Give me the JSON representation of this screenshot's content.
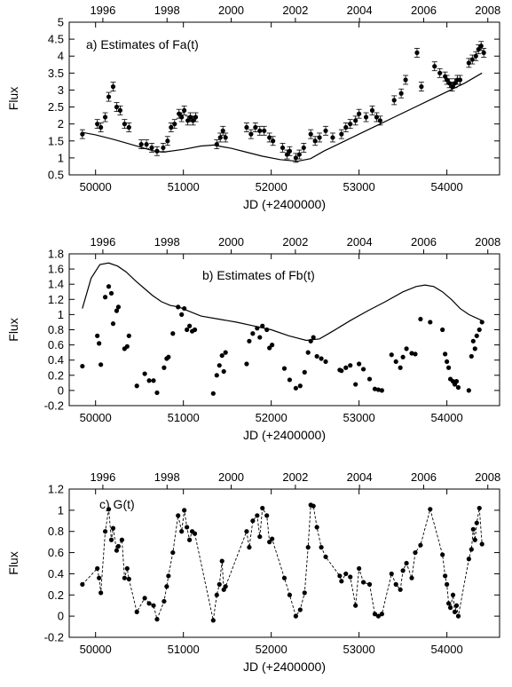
{
  "chart_data": [
    {
      "type": "scatter",
      "title": "a) Estimates of Fa(t)",
      "xlabel": "JD (+2400000)",
      "ylabel": "Flux",
      "top_axis_label": "",
      "xlim": [
        49700,
        54600
      ],
      "ylim": [
        0.5,
        5
      ],
      "xticks": [
        50000,
        51000,
        52000,
        53000,
        54000
      ],
      "yticks": [
        0.5,
        1,
        1.5,
        2,
        2.5,
        3,
        3.5,
        4,
        4.5,
        5
      ],
      "top_ticks": [
        {
          "label": "1996",
          "jd": 50083
        },
        {
          "label": "1998",
          "jd": 50814
        },
        {
          "label": "2000",
          "jd": 51544
        },
        {
          "label": "2002",
          "jd": 52275
        },
        {
          "label": "2004",
          "jd": 53005
        },
        {
          "label": "2006",
          "jd": 53736
        },
        {
          "label": "2008",
          "jd": 54466
        }
      ],
      "error_bars": true,
      "series": [
        {
          "style": "points",
          "x": [
            49850,
            50020,
            50060,
            50110,
            50150,
            50200,
            50240,
            50280,
            50330,
            50380,
            50520,
            50580,
            50640,
            50700,
            50770,
            50820,
            50860,
            50900,
            50950,
            50980,
            51010,
            51050,
            51080,
            51110,
            51140,
            51380,
            51420,
            51450,
            51480,
            51720,
            51770,
            51820,
            51870,
            51920,
            51980,
            52020,
            52130,
            52180,
            52210,
            52280,
            52320,
            52370,
            52450,
            52500,
            52550,
            52620,
            52700,
            52800,
            52850,
            52900,
            52960,
            53000,
            53080,
            53150,
            53200,
            53240,
            53400,
            53480,
            53530,
            53660,
            53710,
            53860,
            53920,
            53980,
            54000,
            54030,
            54060,
            54090,
            54120,
            54150,
            54250,
            54290,
            54330,
            54360,
            54390,
            54420
          ],
          "y": [
            1.7,
            2.0,
            1.9,
            2.2,
            2.8,
            3.1,
            2.5,
            2.4,
            2.0,
            1.9,
            1.4,
            1.4,
            1.3,
            1.2,
            1.3,
            1.5,
            1.9,
            2.0,
            2.3,
            2.2,
            2.4,
            2.1,
            2.2,
            2.1,
            2.2,
            1.4,
            1.6,
            1.8,
            1.6,
            1.9,
            1.7,
            1.9,
            1.8,
            1.8,
            1.6,
            1.5,
            1.3,
            1.1,
            1.2,
            1.0,
            1.1,
            1.3,
            1.7,
            1.5,
            1.6,
            1.8,
            1.6,
            1.7,
            1.9,
            2.0,
            2.1,
            2.3,
            2.2,
            2.4,
            2.2,
            2.1,
            2.7,
            2.9,
            3.3,
            4.1,
            3.1,
            3.7,
            3.5,
            3.4,
            3.3,
            3.2,
            3.1,
            3.2,
            3.3,
            3.3,
            3.8,
            3.9,
            4.0,
            4.2,
            4.3,
            4.1
          ]
        },
        {
          "style": "line",
          "x": [
            49850,
            50000,
            50200,
            50400,
            50600,
            50700,
            50800,
            51000,
            51200,
            51350,
            51400,
            51550,
            51700,
            51900,
            52100,
            52300,
            52450,
            52600,
            52800,
            53000,
            53200,
            53400,
            53600,
            53800,
            54000,
            54200,
            54400
          ],
          "y": [
            1.75,
            1.68,
            1.55,
            1.4,
            1.25,
            1.18,
            1.18,
            1.25,
            1.35,
            1.38,
            1.35,
            1.28,
            1.18,
            1.05,
            0.95,
            0.9,
            0.98,
            1.2,
            1.45,
            1.7,
            1.95,
            2.2,
            2.45,
            2.7,
            2.95,
            3.2,
            3.5
          ]
        }
      ]
    },
    {
      "type": "scatter",
      "title": "b) Estimates of Fb(t)",
      "xlabel": "JD (+2400000)",
      "ylabel": "Flux",
      "top_axis_label": "",
      "xlim": [
        49700,
        54600
      ],
      "ylim": [
        -0.2,
        1.8
      ],
      "xticks": [
        50000,
        51000,
        52000,
        53000,
        54000
      ],
      "yticks": [
        -0.2,
        0,
        0.2,
        0.4,
        0.6,
        0.8,
        1,
        1.2,
        1.4,
        1.6,
        1.8
      ],
      "top_ticks": [
        {
          "label": "1996",
          "jd": 50083
        },
        {
          "label": "1998",
          "jd": 50814
        },
        {
          "label": "2000",
          "jd": 51544
        },
        {
          "label": "2002",
          "jd": 52275
        },
        {
          "label": "2004",
          "jd": 53005
        },
        {
          "label": "2006",
          "jd": 53736
        },
        {
          "label": "2008",
          "jd": 54466
        }
      ],
      "error_bars": false,
      "series": [
        {
          "style": "points",
          "x": [
            49850,
            50020,
            50040,
            50060,
            50110,
            50150,
            50180,
            50200,
            50240,
            50260,
            50330,
            50360,
            50380,
            50470,
            50560,
            50610,
            50660,
            50700,
            50780,
            50810,
            50830,
            50880,
            50940,
            50980,
            51010,
            51040,
            51070,
            51100,
            51130,
            51340,
            51380,
            51410,
            51440,
            51460,
            51480,
            51720,
            51750,
            51790,
            51840,
            51870,
            51900,
            51950,
            51980,
            52010,
            52150,
            52210,
            52280,
            52330,
            52380,
            52420,
            52450,
            52480,
            52520,
            52570,
            52620,
            52780,
            52800,
            52850,
            52900,
            52960,
            53000,
            53050,
            53120,
            53180,
            53220,
            53260,
            53370,
            53420,
            53470,
            53500,
            53540,
            53600,
            53640,
            53700,
            53810,
            53950,
            53980,
            54000,
            54020,
            54040,
            54070,
            54090,
            54110,
            54130,
            54250,
            54280,
            54300,
            54320,
            54340,
            54370,
            54400
          ],
          "y": [
            0.32,
            0.72,
            0.62,
            0.34,
            1.23,
            1.37,
            1.28,
            0.88,
            1.05,
            1.1,
            0.55,
            0.58,
            0.72,
            0.06,
            0.22,
            0.13,
            0.13,
            -0.03,
            0.3,
            0.42,
            0.44,
            0.75,
            1.1,
            1.0,
            1.08,
            0.8,
            0.85,
            0.78,
            0.8,
            -0.04,
            0.2,
            0.33,
            0.46,
            0.25,
            0.5,
            0.35,
            0.65,
            0.75,
            0.82,
            0.7,
            0.85,
            0.8,
            0.56,
            0.6,
            0.29,
            0.14,
            0.03,
            0.06,
            0.24,
            0.5,
            0.65,
            0.7,
            0.45,
            0.42,
            0.38,
            0.27,
            0.26,
            0.3,
            0.33,
            0.08,
            0.35,
            0.28,
            0.15,
            0.02,
            0.01,
            0.0,
            0.47,
            0.38,
            0.3,
            0.44,
            0.55,
            0.49,
            0.48,
            0.94,
            0.9,
            0.8,
            0.48,
            0.38,
            0.3,
            0.15,
            0.12,
            0.08,
            0.12,
            0.04,
            0.0,
            0.45,
            0.65,
            0.55,
            0.72,
            0.8,
            0.9
          ]
        },
        {
          "style": "line",
          "x": [
            49850,
            49950,
            50050,
            50150,
            50250,
            50350,
            50450,
            50550,
            50650,
            50750,
            50850,
            50950,
            51050,
            51200,
            51400,
            51600,
            51800,
            52000,
            52200,
            52400,
            52550,
            52700,
            52900,
            53100,
            53300,
            53500,
            53650,
            53750,
            53850,
            53950,
            54050,
            54150,
            54250,
            54400
          ],
          "y": [
            1.08,
            1.48,
            1.66,
            1.68,
            1.64,
            1.56,
            1.45,
            1.35,
            1.25,
            1.17,
            1.12,
            1.1,
            1.05,
            0.98,
            0.94,
            0.9,
            0.85,
            0.8,
            0.72,
            0.66,
            0.68,
            0.78,
            0.92,
            1.05,
            1.17,
            1.3,
            1.37,
            1.39,
            1.37,
            1.3,
            1.2,
            1.08,
            1.0,
            0.92
          ]
        }
      ]
    },
    {
      "type": "line",
      "title": "c) G(t)",
      "xlabel": "JD (+2400000)",
      "ylabel": "Flux",
      "top_axis_label": "",
      "xlim": [
        49700,
        54600
      ],
      "ylim": [
        -0.2,
        1.2
      ],
      "xticks": [
        50000,
        51000,
        52000,
        53000,
        54000
      ],
      "yticks": [
        -0.2,
        0,
        0.2,
        0.4,
        0.6,
        0.8,
        1,
        1.2
      ],
      "top_ticks": [
        {
          "label": "1996",
          "jd": 50083
        },
        {
          "label": "1998",
          "jd": 50814
        },
        {
          "label": "2000",
          "jd": 51544
        },
        {
          "label": "2002",
          "jd": 52275
        },
        {
          "label": "2004",
          "jd": 53005
        },
        {
          "label": "2006",
          "jd": 53736
        },
        {
          "label": "2008",
          "jd": 54466
        }
      ],
      "error_bars": false,
      "series": [
        {
          "style": "points-dashed",
          "x": [
            49850,
            50020,
            50040,
            50060,
            50110,
            50150,
            50180,
            50200,
            50240,
            50260,
            50300,
            50330,
            50360,
            50380,
            50470,
            50560,
            50610,
            50660,
            50700,
            50780,
            50810,
            50830,
            50880,
            50940,
            50980,
            51010,
            51040,
            51070,
            51100,
            51130,
            51340,
            51380,
            51410,
            51440,
            51460,
            51480,
            51720,
            51750,
            51790,
            51840,
            51870,
            51900,
            51950,
            51980,
            52010,
            52150,
            52210,
            52280,
            52330,
            52380,
            52420,
            52450,
            52480,
            52520,
            52570,
            52620,
            52780,
            52800,
            52850,
            52900,
            52960,
            53000,
            53050,
            53120,
            53180,
            53220,
            53260,
            53370,
            53420,
            53470,
            53500,
            53540,
            53600,
            53640,
            53700,
            53810,
            53950,
            53980,
            54000,
            54020,
            54040,
            54070,
            54090,
            54110,
            54130,
            54250,
            54280,
            54300,
            54320,
            54340,
            54370,
            54400
          ],
          "y": [
            0.3,
            0.45,
            0.36,
            0.22,
            0.8,
            1.01,
            0.72,
            0.83,
            0.62,
            0.66,
            0.72,
            0.36,
            0.45,
            0.35,
            0.04,
            0.17,
            0.12,
            0.1,
            -0.03,
            0.14,
            0.28,
            0.38,
            0.6,
            0.95,
            0.8,
            1.0,
            0.84,
            0.72,
            0.8,
            0.78,
            -0.04,
            0.2,
            0.3,
            0.52,
            0.25,
            0.28,
            0.8,
            0.65,
            0.9,
            0.95,
            0.75,
            1.02,
            0.95,
            0.7,
            0.73,
            0.36,
            0.2,
            0.0,
            0.06,
            0.22,
            0.65,
            1.05,
            1.04,
            0.84,
            0.65,
            0.56,
            0.38,
            0.33,
            0.4,
            0.37,
            0.1,
            0.45,
            0.32,
            0.3,
            0.02,
            0.0,
            0.02,
            0.4,
            0.3,
            0.25,
            0.43,
            0.5,
            0.36,
            0.6,
            0.67,
            1.01,
            0.58,
            0.38,
            0.3,
            0.12,
            0.08,
            0.2,
            0.04,
            0.1,
            0.0,
            0.54,
            0.63,
            0.82,
            0.72,
            0.88,
            1.02,
            0.68
          ]
        }
      ]
    }
  ]
}
